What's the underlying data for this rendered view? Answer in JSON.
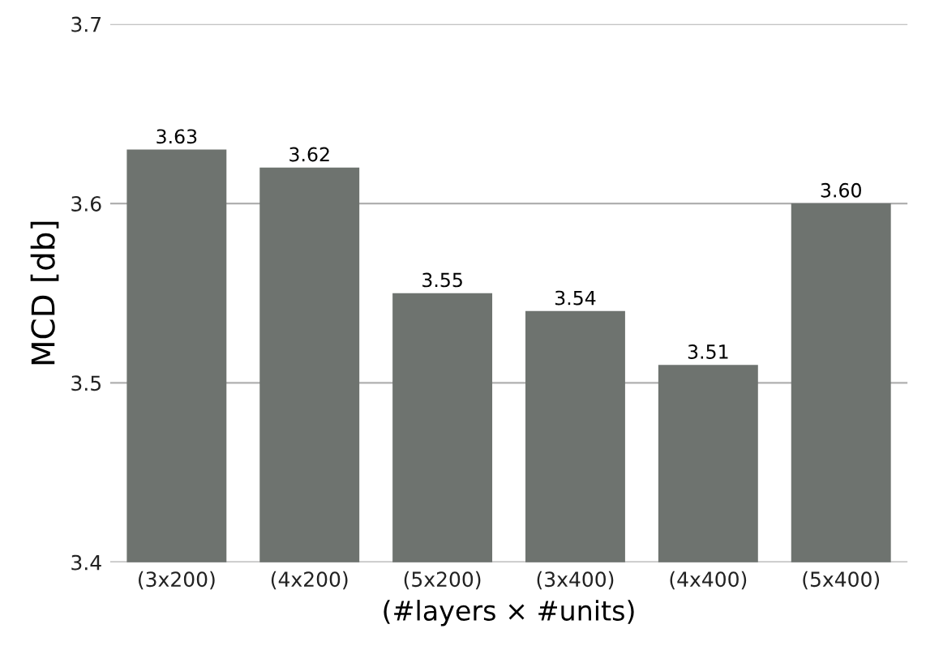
{
  "chart_data": {
    "type": "bar",
    "categories": [
      "(3x200)",
      "(4x200)",
      "(5x200)",
      "(3x400)",
      "(4x400)",
      "(5x400)"
    ],
    "values": [
      3.63,
      3.62,
      3.55,
      3.54,
      3.51,
      3.6
    ],
    "value_labels": [
      "3.63",
      "3.62",
      "3.55",
      "3.54",
      "3.51",
      "3.60"
    ],
    "color": "#6e736f",
    "xlabel": "(#layers × #units)",
    "ylabel": "MCD [db]",
    "ylim": [
      3.4,
      3.7
    ],
    "yticks": [
      3.4,
      3.5,
      3.6,
      3.7
    ],
    "grid": "y"
  }
}
